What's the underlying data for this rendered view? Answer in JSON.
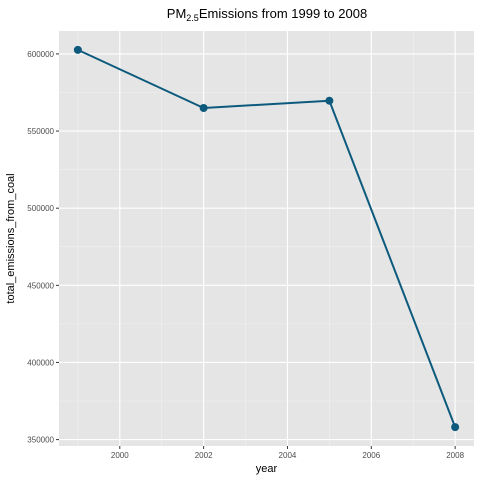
{
  "chart_data": {
    "type": "line",
    "title": {
      "prefix": "PM",
      "subscript": "2.5",
      "suffix": "Emissions from 1999 to 2008"
    },
    "xlabel": "year",
    "ylabel": "total_emissions_from_coal",
    "x": [
      1999,
      2002,
      2005,
      2008
    ],
    "series": [
      {
        "values": [
          602624,
          564940,
          569655,
          358084
        ]
      }
    ],
    "xlim": [
      1998.55,
      2008.45
    ],
    "ylim": [
      345855,
      614853
    ],
    "x_ticks": [
      2000,
      2002,
      2004,
      2006,
      2008
    ],
    "x_tick_labels": [
      "2000",
      "2002",
      "2004",
      "2006",
      "2008"
    ],
    "y_ticks": [
      350000,
      400000,
      450000,
      500000,
      550000,
      600000
    ],
    "y_tick_labels": [
      "350000",
      "400000",
      "450000",
      "500000",
      "550000",
      "600000"
    ],
    "grid": true,
    "colors": {
      "panel_background": "#e5e5e5",
      "grid_major": "#ffffff",
      "grid_minor": "#f2f2f2",
      "series": "#0d5a7d"
    }
  }
}
